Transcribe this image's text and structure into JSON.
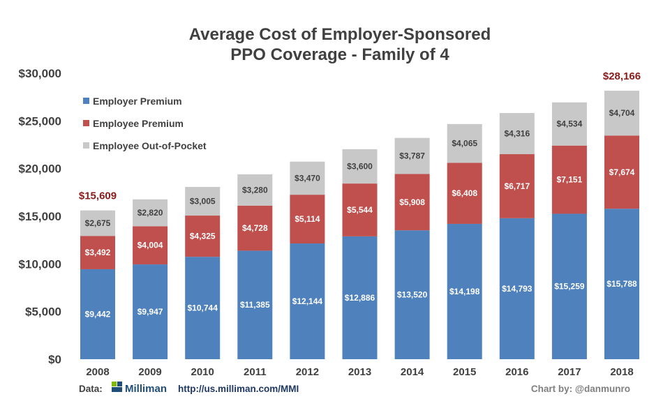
{
  "chart_data": {
    "type": "bar",
    "stacked": true,
    "title_line1": "Average Cost of Employer-Sponsored",
    "title_line2": "PPO Coverage - Family of 4",
    "categories": [
      "2008",
      "2009",
      "2010",
      "2011",
      "2012",
      "2013",
      "2014",
      "2015",
      "2016",
      "2017",
      "2018"
    ],
    "series": [
      {
        "name": "Employer Premium",
        "color": "#4f81bd",
        "label_color": "#ffffff",
        "values": [
          9442,
          9947,
          10744,
          11385,
          12144,
          12886,
          13520,
          14198,
          14793,
          15259,
          15788
        ],
        "labels": [
          "$9,442",
          "$9,947",
          "$10,744",
          "$11,385",
          "$12,144",
          "$12,886",
          "$13,520",
          "$14,198",
          "$14,793",
          "$15,259",
          "$15,788"
        ]
      },
      {
        "name": "Employee Premium",
        "color": "#c0504d",
        "label_color": "#ffffff",
        "values": [
          3492,
          4004,
          4325,
          4728,
          5114,
          5544,
          5908,
          6408,
          6717,
          7151,
          7674
        ],
        "labels": [
          "$3,492",
          "$4,004",
          "$4,325",
          "$4,728",
          "$5,114",
          "$5,544",
          "$5,908",
          "$6,408",
          "$6,717",
          "$7,151",
          "$7,674"
        ]
      },
      {
        "name": "Employee Out-of-Pocket",
        "color": "#c8c8c8",
        "label_color": "#404040",
        "values": [
          2675,
          2820,
          3005,
          3280,
          3470,
          3600,
          3787,
          4065,
          4316,
          4534,
          4704
        ],
        "labels": [
          "$2,675",
          "$2,820",
          "$3,005",
          "$3,280",
          "$3,470",
          "$3,600",
          "$3,787",
          "$4,065",
          "$4,316",
          "$4,534",
          "$4,704"
        ]
      }
    ],
    "annotations": [
      {
        "category": "2008",
        "value": 15609,
        "text": "$15,609",
        "color": "#8b1a1a"
      },
      {
        "category": "2018",
        "value": 28166,
        "text": "$28,166",
        "color": "#8b1a1a"
      }
    ],
    "ylim": [
      0,
      30000
    ],
    "yticks": [
      0,
      5000,
      10000,
      15000,
      20000,
      25000,
      30000
    ],
    "ytick_labels": [
      "$0",
      "$5,000",
      "$10,000",
      "$15,000",
      "$20,000",
      "$25,000",
      "$30,000"
    ],
    "xlabel": "",
    "ylabel": "",
    "grid": false,
    "legend_position": "top-left"
  },
  "footer": {
    "data_label": "Data:",
    "source_name": "Milliman",
    "source_url": "http://us.milliman.com/MMI",
    "credit": "Chart by: @danmunro"
  },
  "colors": {
    "title": "#404040",
    "footer_text": "#404040",
    "url": "#1f3864",
    "credit": "#808080",
    "logo": "#1f4e79",
    "logo_accent": "#7fba00"
  }
}
